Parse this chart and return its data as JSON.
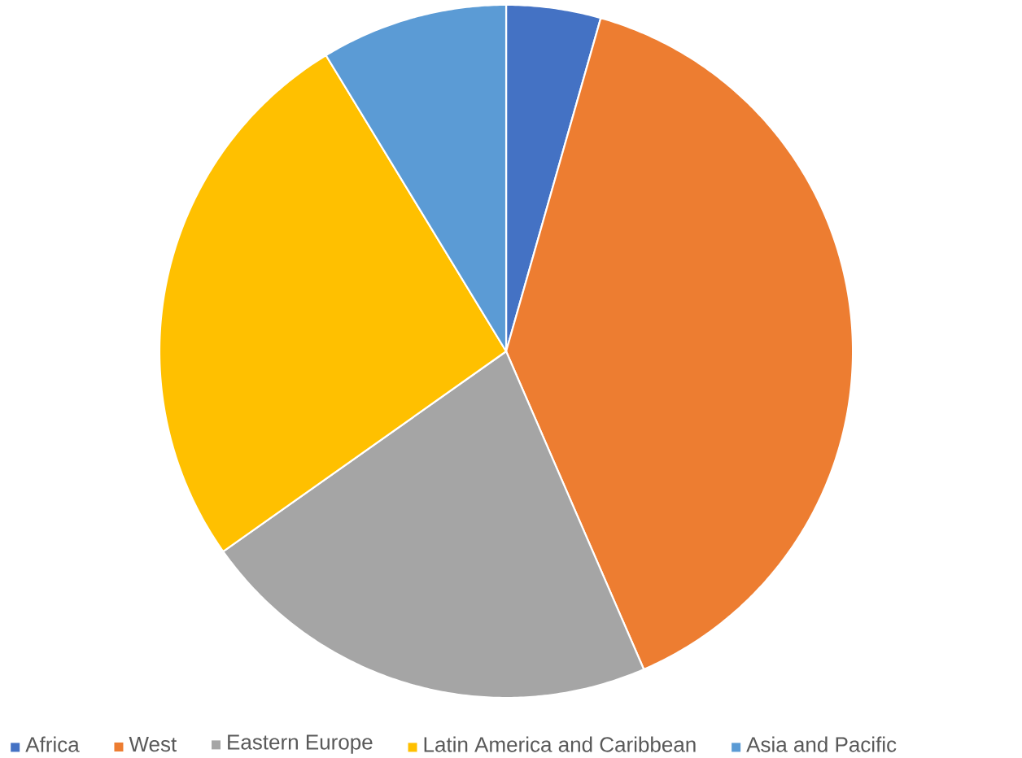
{
  "chart_data": {
    "type": "pie",
    "categories": [
      "Africa",
      "West",
      "Eastern Europe",
      "Latin America and Caribbean",
      "Asia and Pacific"
    ],
    "values": [
      4.4,
      39.1,
      21.7,
      26.1,
      8.7
    ],
    "colors": [
      "#4472c4",
      "#ed7d31",
      "#a5a5a5",
      "#ffc000",
      "#5b9bd5"
    ],
    "legend": "bottom"
  }
}
